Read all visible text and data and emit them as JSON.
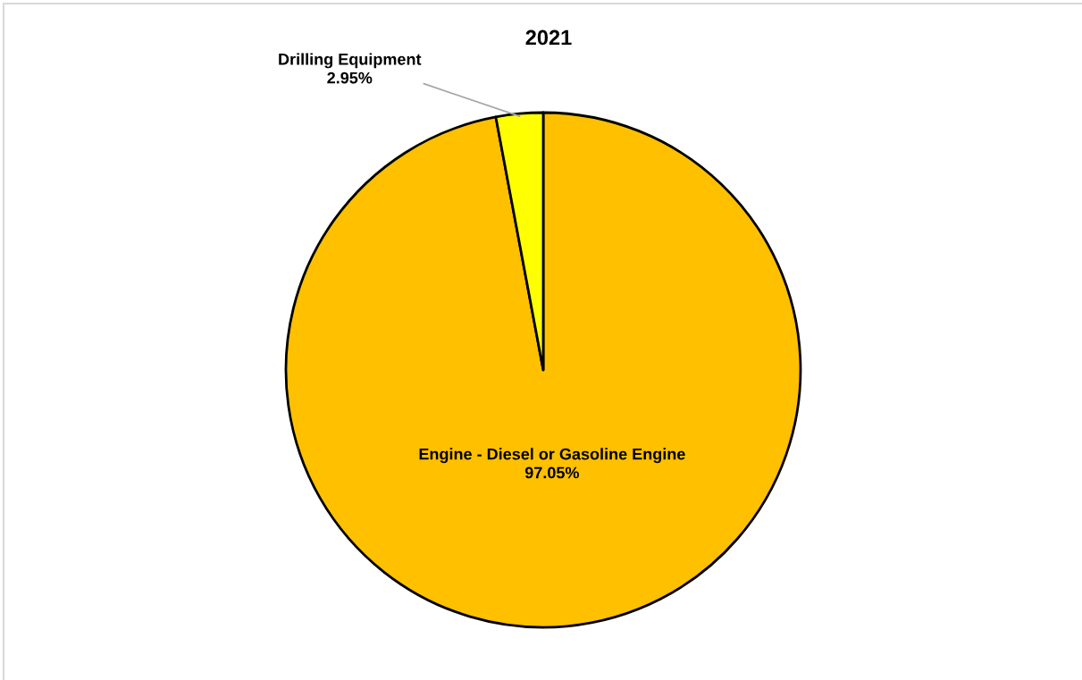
{
  "chart_data": {
    "type": "pie",
    "title": "2021",
    "categories": [
      "Engine - Diesel or Gasoline Engine",
      "Drilling Equipment"
    ],
    "values": [
      97.05,
      2.95
    ],
    "colors": [
      "#ffc000",
      "#ffff00"
    ],
    "value_labels": [
      "97.05%",
      "2.95%"
    ]
  }
}
